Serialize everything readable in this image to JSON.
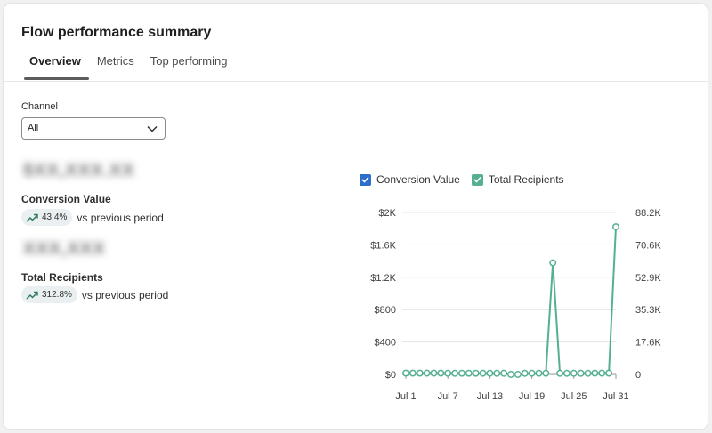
{
  "panel": {
    "title": "Flow performance summary",
    "tabs": [
      {
        "label": "Overview",
        "active": true
      },
      {
        "label": "Metrics",
        "active": false
      },
      {
        "label": "Top performing",
        "active": false
      }
    ]
  },
  "filter": {
    "label": "Channel",
    "selected": "All"
  },
  "metrics": [
    {
      "value": "$XX,XXX.XX",
      "label": "Conversion Value",
      "change": "43.4%",
      "comparison": "vs previous period",
      "trend_icon": "trend-up-icon"
    },
    {
      "value": "XXX,XXX",
      "label": "Total Recipients",
      "change": "312.8%",
      "comparison": "vs previous period",
      "trend_icon": "trend-up-icon"
    }
  ],
  "legend": [
    {
      "label": "Conversion Value",
      "checked": true,
      "color": "#2c6ecb"
    },
    {
      "label": "Total Recipients",
      "checked": true,
      "color": "#54b08f"
    }
  ],
  "colors": {
    "recipients_line": "#54b08f",
    "conversion_checkbox": "#2c6ecb",
    "gridline": "#e4e4e4",
    "trend_icon": "#2d7a5c"
  },
  "chart_data": {
    "type": "line",
    "x": [
      1,
      2,
      3,
      4,
      5,
      6,
      7,
      8,
      9,
      10,
      11,
      12,
      13,
      14,
      15,
      16,
      17,
      18,
      19,
      20,
      21,
      22,
      23,
      24,
      25,
      26,
      27,
      28,
      29,
      30,
      31
    ],
    "x_ticks": [
      "Jul 1",
      "Jul 7",
      "Jul 13",
      "Jul 19",
      "Jul 25",
      "Jul 31"
    ],
    "x_tick_days": [
      1,
      7,
      13,
      19,
      25,
      31
    ],
    "y_left_ticks": [
      "$0",
      "$400",
      "$800",
      "$1.2K",
      "$1.6K",
      "$2K"
    ],
    "y_right_ticks": [
      "0",
      "17.6K",
      "35.3K",
      "52.9K",
      "70.6K",
      "88.2K"
    ],
    "y_right_range": [
      0,
      88200
    ],
    "series": [
      {
        "name": "Total Recipients",
        "axis": "right",
        "values": [
          700,
          700,
          700,
          700,
          700,
          700,
          600,
          600,
          650,
          650,
          650,
          650,
          600,
          600,
          600,
          0,
          0,
          600,
          650,
          650,
          650,
          60800,
          600,
          600,
          600,
          600,
          600,
          700,
          700,
          700,
          80400
        ]
      }
    ],
    "grid": true
  }
}
